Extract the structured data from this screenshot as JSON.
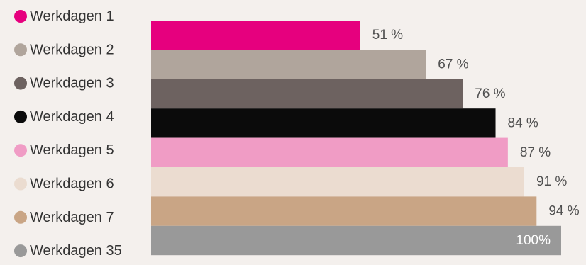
{
  "chart_data": {
    "type": "bar",
    "orientation": "horizontal",
    "legend_position": "left",
    "categories": [
      "Werkdagen 1",
      "Werkdagen 2",
      "Werkdagen 3",
      "Werkdagen 4",
      "Werkdagen 5",
      "Werkdagen 6",
      "Werkdagen 7",
      "Werkdagen 35"
    ],
    "values": [
      51,
      67,
      76,
      84,
      87,
      91,
      94,
      100
    ],
    "value_labels": [
      "51 %",
      "67 %",
      "76 %",
      "84 %",
      "87 %",
      "91 %",
      "94 %",
      "100%"
    ],
    "colors": [
      "#e6007e",
      "#b0a59c",
      "#6d6260",
      "#0b0b0b",
      "#f09cc5",
      "#ebdcd0",
      "#c9a585",
      "#999999"
    ],
    "xlim": [
      0,
      100
    ],
    "grid": false,
    "title": "",
    "xlabel": "",
    "ylabel": ""
  },
  "colors": {
    "background": "#f4f0ed",
    "legend_text": "#333333",
    "value_label_outside": "#505050",
    "value_label_inside": "#ffffff"
  }
}
